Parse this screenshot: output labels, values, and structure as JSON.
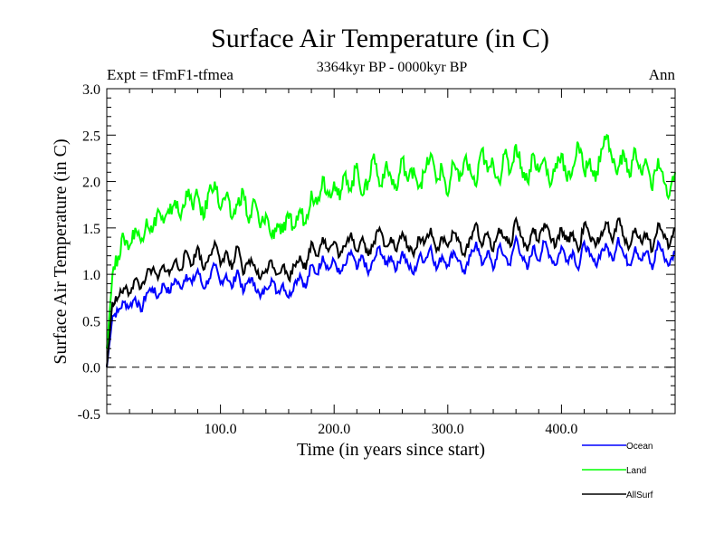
{
  "chart_data": {
    "type": "line",
    "title": "Surface Air Temperature (in C)",
    "subtitle": "3364kyr BP - 0000kyr BP",
    "annotation_left": "Expt = tFmF1-tfmea",
    "annotation_right": "Ann",
    "xlabel": "Time (in years since start)",
    "ylabel": "Surface Air Temperature (in C)",
    "xlim": [
      0,
      500
    ],
    "ylim": [
      -0.5,
      3.0
    ],
    "x_ticks": [
      100,
      200,
      300,
      400
    ],
    "x_tick_labels": [
      "100.0",
      "200.0",
      "300.0",
      "400.0"
    ],
    "y_ticks": [
      -0.5,
      0.0,
      0.5,
      1.0,
      1.5,
      2.0,
      2.5,
      3.0
    ],
    "y_tick_labels": [
      "-0.5",
      "0.0",
      "0.5",
      "1.0",
      "1.5",
      "2.0",
      "2.5",
      "3.0"
    ],
    "reference_line": {
      "y": 0.0,
      "style": "dashed"
    },
    "grid": false,
    "legend_position": "bottom-right",
    "x": [
      0,
      5,
      10,
      15,
      20,
      25,
      30,
      35,
      40,
      45,
      50,
      55,
      60,
      65,
      70,
      75,
      80,
      85,
      90,
      95,
      100,
      105,
      110,
      115,
      120,
      125,
      130,
      135,
      140,
      145,
      150,
      155,
      160,
      165,
      170,
      175,
      180,
      185,
      190,
      195,
      200,
      205,
      210,
      215,
      220,
      225,
      230,
      235,
      240,
      245,
      250,
      255,
      260,
      265,
      270,
      275,
      280,
      285,
      290,
      295,
      300,
      305,
      310,
      315,
      320,
      325,
      330,
      335,
      340,
      345,
      350,
      355,
      360,
      365,
      370,
      375,
      380,
      385,
      390,
      395,
      400,
      405,
      410,
      415,
      420,
      425,
      430,
      435,
      440,
      445,
      450,
      455,
      460,
      465,
      470,
      475,
      480,
      485,
      490,
      495,
      500
    ],
    "series": [
      {
        "name": "Ocean",
        "color": "#0000ff",
        "values": [
          0.0,
          0.55,
          0.6,
          0.7,
          0.65,
          0.75,
          0.6,
          0.8,
          0.85,
          0.75,
          0.9,
          0.8,
          0.95,
          0.85,
          1.0,
          0.9,
          1.05,
          0.85,
          0.95,
          1.1,
          0.9,
          1.0,
          0.85,
          1.05,
          0.8,
          0.95,
          0.9,
          0.75,
          0.85,
          0.95,
          0.8,
          0.9,
          0.75,
          0.9,
          1.0,
          0.85,
          1.1,
          1.0,
          1.2,
          1.05,
          1.15,
          1.0,
          1.1,
          1.25,
          1.05,
          1.2,
          1.0,
          1.15,
          1.3,
          1.1,
          1.2,
          1.05,
          1.25,
          1.1,
          1.0,
          1.2,
          1.15,
          1.3,
          1.05,
          1.2,
          1.1,
          1.25,
          1.15,
          1.0,
          1.2,
          1.35,
          1.1,
          1.25,
          1.05,
          1.3,
          1.2,
          1.1,
          1.4,
          1.2,
          1.05,
          1.3,
          1.15,
          1.35,
          1.2,
          1.1,
          1.3,
          1.15,
          1.25,
          1.05,
          1.35,
          1.2,
          1.1,
          1.25,
          1.3,
          1.15,
          1.4,
          1.2,
          1.1,
          1.3,
          1.15,
          1.25,
          1.05,
          1.35,
          1.2,
          1.1,
          1.25
        ]
      },
      {
        "name": "Land",
        "color": "#00ff00",
        "values": [
          0.2,
          1.0,
          1.2,
          1.4,
          1.3,
          1.5,
          1.35,
          1.6,
          1.45,
          1.7,
          1.55,
          1.65,
          1.8,
          1.6,
          1.9,
          1.75,
          1.85,
          1.6,
          1.9,
          2.0,
          1.7,
          1.85,
          1.6,
          1.75,
          1.9,
          1.55,
          1.8,
          1.5,
          1.65,
          1.4,
          1.55,
          1.45,
          1.6,
          1.5,
          1.7,
          1.55,
          1.9,
          1.75,
          2.05,
          1.85,
          2.0,
          1.8,
          2.1,
          1.9,
          2.2,
          1.85,
          2.0,
          2.3,
          1.95,
          2.15,
          2.05,
          1.9,
          2.25,
          2.0,
          2.15,
          1.95,
          2.1,
          2.3,
          2.0,
          2.15,
          1.85,
          2.2,
          2.0,
          2.25,
          2.1,
          1.95,
          2.35,
          2.1,
          2.2,
          2.0,
          2.3,
          2.1,
          2.4,
          2.15,
          2.0,
          2.3,
          2.1,
          2.25,
          1.95,
          2.2,
          2.3,
          2.0,
          2.15,
          2.4,
          2.1,
          2.25,
          2.0,
          2.35,
          2.5,
          2.2,
          2.15,
          2.3,
          2.05,
          2.35,
          2.1,
          2.2,
          1.9,
          2.25,
          2.0,
          1.85,
          2.1
        ]
      },
      {
        "name": "AllSurf",
        "color": "#000000",
        "values": [
          0.0,
          0.7,
          0.75,
          0.85,
          0.8,
          0.95,
          0.85,
          1.0,
          1.05,
          0.95,
          1.1,
          1.0,
          1.15,
          1.05,
          1.25,
          1.1,
          1.3,
          1.05,
          1.2,
          1.35,
          1.1,
          1.25,
          1.05,
          1.3,
          1.0,
          1.15,
          1.1,
          0.95,
          1.05,
          1.15,
          1.0,
          1.1,
          0.95,
          1.1,
          1.2,
          1.05,
          1.35,
          1.2,
          1.4,
          1.25,
          1.35,
          1.2,
          1.3,
          1.45,
          1.25,
          1.4,
          1.2,
          1.35,
          1.5,
          1.3,
          1.4,
          1.25,
          1.45,
          1.3,
          1.2,
          1.4,
          1.35,
          1.5,
          1.25,
          1.4,
          1.3,
          1.45,
          1.35,
          1.2,
          1.4,
          1.55,
          1.3,
          1.45,
          1.25,
          1.5,
          1.4,
          1.3,
          1.6,
          1.4,
          1.25,
          1.5,
          1.35,
          1.55,
          1.4,
          1.3,
          1.5,
          1.35,
          1.45,
          1.25,
          1.55,
          1.4,
          1.3,
          1.45,
          1.55,
          1.35,
          1.6,
          1.4,
          1.3,
          1.5,
          1.35,
          1.45,
          1.25,
          1.55,
          1.4,
          1.3,
          1.5
        ]
      }
    ]
  }
}
